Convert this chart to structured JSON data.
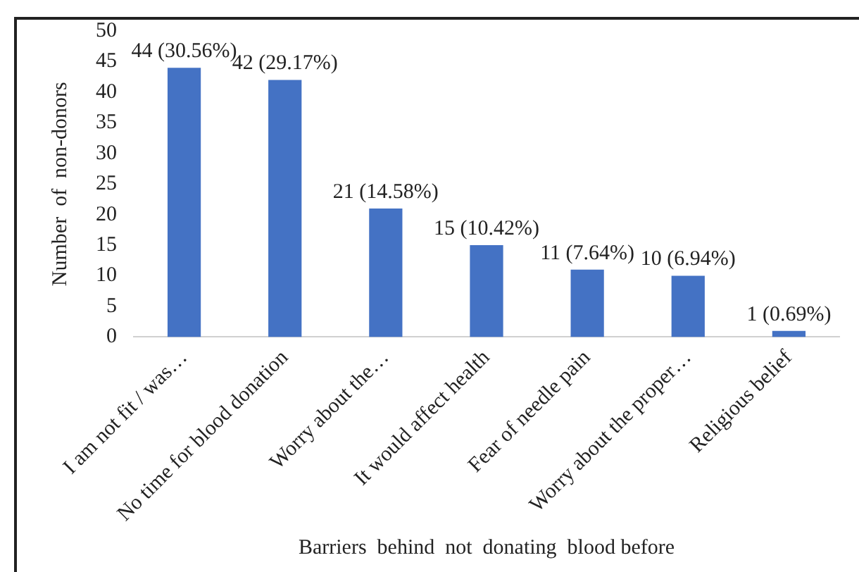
{
  "chart_data": {
    "type": "bar",
    "xlabel": "Barriers  behind  not  donating  blood before",
    "ylabel": "Number  of  non-donors",
    "categories": [
      "I am not fit / was…",
      "No time for blood donation",
      "Worry about the…",
      "It would affect health",
      "Fear of needle pain",
      "Worry about the proper…",
      "Religious belief"
    ],
    "values": [
      44,
      42,
      21,
      15,
      11,
      10,
      1
    ],
    "color": "#4472c4",
    "value_labels": [
      "44 (30.56%)",
      "42 (29.17%)",
      "21 (14.58%)",
      "15 (10.42%)",
      "11 (7.64%)",
      "10 (6.94%)",
      "1 (0.69%)"
    ],
    "ylim": [
      0,
      50
    ],
    "yticks": [
      0,
      5,
      10,
      15,
      20,
      25,
      30,
      35,
      40,
      45,
      50
    ],
    "grid": false,
    "legend": false
  }
}
